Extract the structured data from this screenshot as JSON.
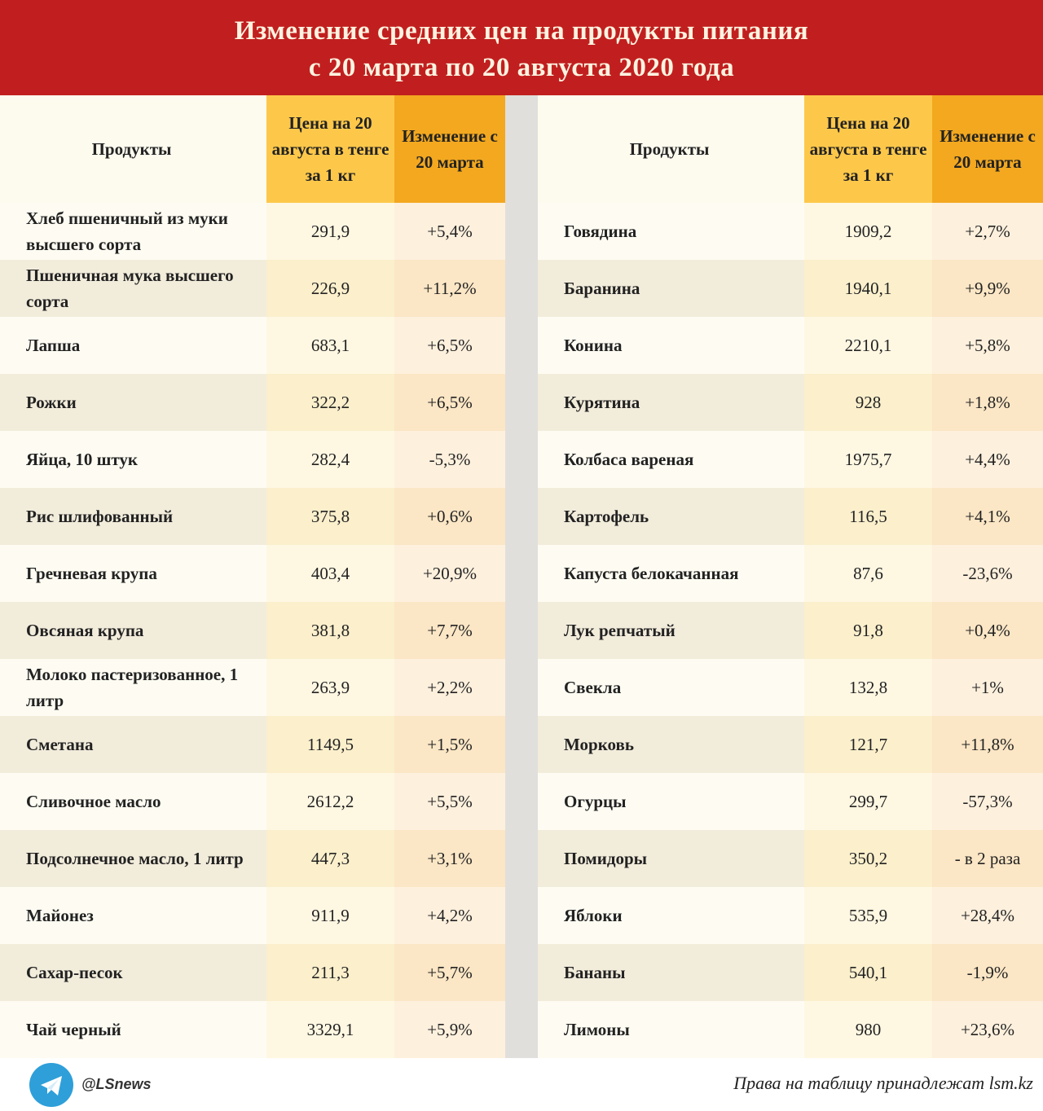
{
  "title": {
    "line1": "Изменение средних цен на продукты питания",
    "line2": "с 20 марта по 20 августа 2020 года"
  },
  "headers": {
    "product": "Продукты",
    "price": "Цена на 20 августа в тенге за 1 кг",
    "change": "Изменение с 20 марта"
  },
  "left_rows": [
    [
      "Хлеб пшеничный из муки высшего сорта",
      "291,9",
      "+5,4%"
    ],
    [
      "Пшеничная мука высшего сорта",
      "226,9",
      "+11,2%"
    ],
    [
      "Лапша",
      "683,1",
      "+6,5%"
    ],
    [
      "Рожки",
      "322,2",
      "+6,5%"
    ],
    [
      "Яйца, 10 штук",
      "282,4",
      "-5,3%"
    ],
    [
      "Рис шлифованный",
      "375,8",
      "+0,6%"
    ],
    [
      "Гречневая крупа",
      "403,4",
      "+20,9%"
    ],
    [
      "Овсяная крупа",
      "381,8",
      "+7,7%"
    ],
    [
      "Молоко пастеризованное, 1 литр",
      "263,9",
      "+2,2%"
    ],
    [
      "Сметана",
      "1149,5",
      "+1,5%"
    ],
    [
      "Сливочное масло",
      "2612,2",
      "+5,5%"
    ],
    [
      "Подсолнечное масло, 1 литр",
      "447,3",
      "+3,1%"
    ],
    [
      "Майонез",
      "911,9",
      "+4,2%"
    ],
    [
      "Сахар-песок",
      "211,3",
      "+5,7%"
    ],
    [
      "Чай черный",
      "3329,1",
      "+5,9%"
    ]
  ],
  "right_rows": [
    [
      "Говядина",
      "1909,2",
      "+2,7%"
    ],
    [
      "Баранина",
      "1940,1",
      "+9,9%"
    ],
    [
      "Конина",
      "2210,1",
      "+5,8%"
    ],
    [
      "Курятина",
      "928",
      "+1,8%"
    ],
    [
      "Колбаса вареная",
      "1975,7",
      "+4,4%"
    ],
    [
      "Картофель",
      "116,5",
      "+4,1%"
    ],
    [
      "Капуста белокачанная",
      "87,6",
      "-23,6%"
    ],
    [
      "Лук репчатый",
      "91,8",
      "+0,4%"
    ],
    [
      "Свекла",
      "132,8",
      "+1%"
    ],
    [
      "Морковь",
      "121,7",
      "+11,8%"
    ],
    [
      "Огурцы",
      "299,7",
      "-57,3%"
    ],
    [
      "Помидоры",
      "350,2",
      "- в 2 раза"
    ],
    [
      "Яблоки",
      "535,9",
      "+28,4%"
    ],
    [
      "Бананы",
      "540,1",
      "-1,9%"
    ],
    [
      "Лимоны",
      "980",
      "+23,6%"
    ]
  ],
  "footer": {
    "handle": "@LSnews",
    "icon": "telegram-icon",
    "rights": "Права на таблицу принадлежат lsm.kz"
  },
  "colors": {
    "title_bg": "#c11f1f",
    "price_header": "#fdc84a",
    "change_header": "#f3a81f"
  }
}
